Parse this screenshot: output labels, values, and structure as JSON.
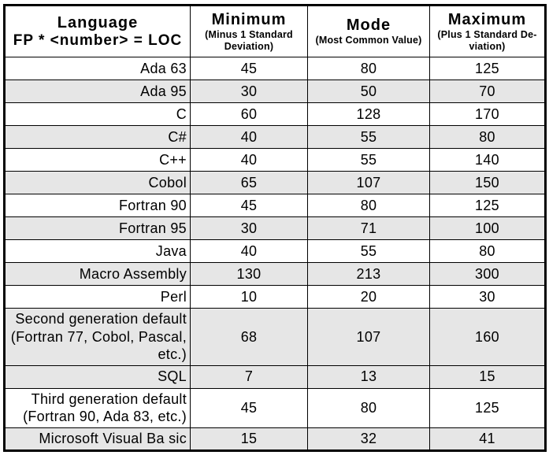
{
  "colors": {
    "row_stripe": "#e6e6e6",
    "border": "#000000",
    "text": "#000000",
    "background": "#ffffff"
  },
  "table": {
    "header": {
      "language": {
        "title": "Language",
        "subtitle": "FP * <number> = LOC"
      },
      "minimum": {
        "title": "Minimum",
        "subtitle": "(Minus 1 Standard\nDeviation)"
      },
      "mode": {
        "title": "Mode",
        "subtitle": "(Most Common Value)"
      },
      "maximum": {
        "title": "Maximum",
        "subtitle": "(Plus 1 Standard De-\nviation)"
      }
    },
    "rows": [
      {
        "language": "Ada 63",
        "minimum": "45",
        "mode": "80",
        "maximum": "125",
        "shaded": false
      },
      {
        "language": "Ada 95",
        "minimum": "30",
        "mode": "50",
        "maximum": "70",
        "shaded": true
      },
      {
        "language": "C",
        "minimum": "60",
        "mode": "128",
        "maximum": "170",
        "shaded": false
      },
      {
        "language": "C#",
        "minimum": "40",
        "mode": "55",
        "maximum": "80",
        "shaded": true
      },
      {
        "language": "C++",
        "minimum": "40",
        "mode": "55",
        "maximum": "140",
        "shaded": false
      },
      {
        "language": "Cobol",
        "minimum": "65",
        "mode": "107",
        "maximum": "150",
        "shaded": true
      },
      {
        "language": "Fortran 90",
        "minimum": "45",
        "mode": "80",
        "maximum": "125",
        "shaded": false
      },
      {
        "language": "Fortran 95",
        "minimum": "30",
        "mode": "71",
        "maximum": "100",
        "shaded": true
      },
      {
        "language": "Java",
        "minimum": "40",
        "mode": "55",
        "maximum": "80",
        "shaded": false
      },
      {
        "language": "Macro Assembly",
        "minimum": "130",
        "mode": "213",
        "maximum": "300",
        "shaded": true
      },
      {
        "language": "Perl",
        "minimum": "10",
        "mode": "20",
        "maximum": "30",
        "shaded": false
      },
      {
        "language": "Second generation default\n(Fortran 77, Cobol, Pascal,\netc.)",
        "minimum": "68",
        "mode": "107",
        "maximum": "160",
        "shaded": true
      },
      {
        "language": "SQL",
        "minimum": "7",
        "mode": "13",
        "maximum": "15",
        "shaded": true
      },
      {
        "language": "Third generation default\n(Fortran 90, Ada 83, etc.)",
        "minimum": "45",
        "mode": "80",
        "maximum": "125",
        "shaded": false
      },
      {
        "language": "Microsoft Visual Ba sic",
        "minimum": "15",
        "mode": "32",
        "maximum": "41",
        "shaded": true
      }
    ]
  },
  "chart_data": {
    "type": "table",
    "title": "",
    "columns": [
      "Language FP * <number> = LOC",
      "Minimum (Minus 1 Standard Deviation)",
      "Mode (Most Common Value)",
      "Maximum (Plus 1 Standard Deviation)"
    ],
    "rows": [
      [
        "Ada 63",
        45,
        80,
        125
      ],
      [
        "Ada 95",
        30,
        50,
        70
      ],
      [
        "C",
        60,
        128,
        170
      ],
      [
        "C#",
        40,
        55,
        80
      ],
      [
        "C++",
        40,
        55,
        140
      ],
      [
        "Cobol",
        65,
        107,
        150
      ],
      [
        "Fortran 90",
        45,
        80,
        125
      ],
      [
        "Fortran 95",
        30,
        71,
        100
      ],
      [
        "Java",
        40,
        55,
        80
      ],
      [
        "Macro Assembly",
        130,
        213,
        300
      ],
      [
        "Perl",
        10,
        20,
        30
      ],
      [
        "Second generation default (Fortran 77, Cobol, Pascal, etc.)",
        68,
        107,
        160
      ],
      [
        "SQL",
        7,
        13,
        15
      ],
      [
        "Third generation default (Fortran 90, Ada 83, etc.)",
        45,
        80,
        125
      ],
      [
        "Microsoft Visual Ba sic",
        15,
        32,
        41
      ]
    ]
  }
}
